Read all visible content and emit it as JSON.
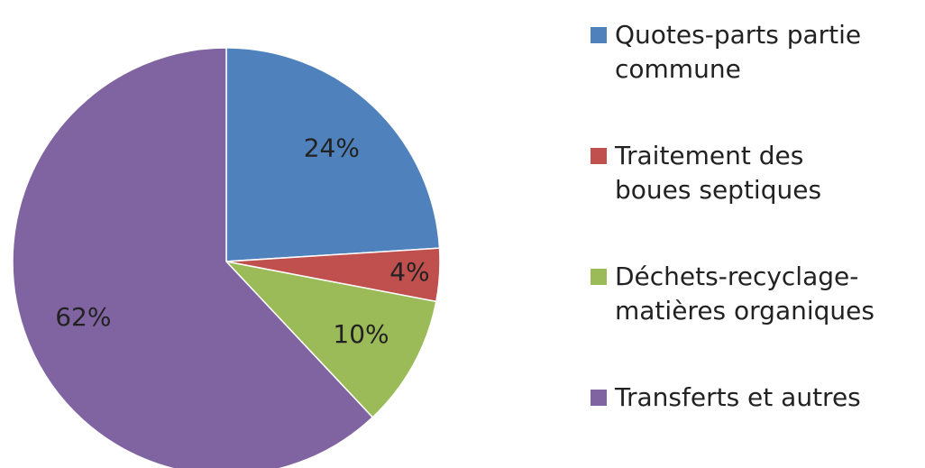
{
  "chart_data": {
    "type": "pie",
    "categories": [
      "Quotes-parts partie commune",
      "Traitement des boues septiques",
      "Déchets-recyclage-matières organiques",
      "Transferts et autres"
    ],
    "values": [
      24,
      4,
      10,
      62
    ],
    "value_labels": [
      "24%",
      "4%",
      "10%",
      "62%"
    ],
    "colors": [
      "#4f81bd",
      "#c0504d",
      "#9bbb59",
      "#8064a2"
    ],
    "legend": "right"
  }
}
